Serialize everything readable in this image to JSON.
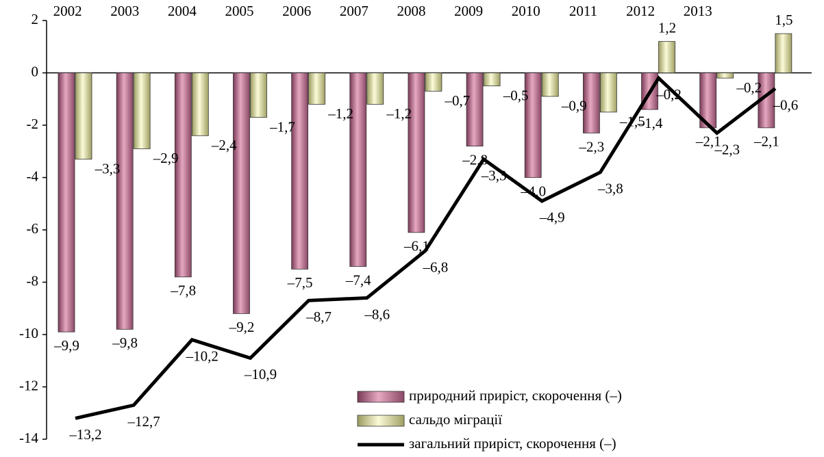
{
  "chart_data": {
    "type": "bar_line",
    "categories": [
      "2002",
      "2003",
      "2004",
      "2005",
      "2006",
      "2007",
      "2008",
      "2009",
      "2010",
      "2011",
      "2012",
      "2013",
      null
    ],
    "series": [
      {
        "name": "природний приріст, скорочення (–)",
        "type": "bar",
        "color": "#c47a98",
        "values": [
          -9.9,
          -9.8,
          -7.8,
          -9.2,
          -7.5,
          -7.4,
          -6.1,
          -2.8,
          -4.0,
          -2.3,
          -1.4,
          -2.1,
          -2.1
        ],
        "value_labels": [
          "–9,9",
          "–9,8",
          "–7,8",
          "–9,2",
          "–7,5",
          "–7,4",
          "–6,1",
          "–2,8",
          "–4,0",
          "–2,3",
          "–1,4",
          "–2,1",
          "–2,1"
        ]
      },
      {
        "name": "сальдо міграції",
        "type": "bar",
        "color": "#eeeeb0",
        "values": [
          -3.3,
          -2.9,
          -2.4,
          -1.7,
          -1.2,
          -1.2,
          -0.7,
          -0.5,
          -0.9,
          -1.5,
          1.2,
          -0.2,
          1.5
        ],
        "value_labels": [
          "–3,3",
          "–2,9",
          "–2,4",
          "–1,7",
          "–1,2",
          "–1,2",
          "–0,7",
          "–0,5",
          "–0,9",
          "–1,5",
          "1,2",
          "–0,2",
          "1,5"
        ]
      },
      {
        "name": "загальний приріст, скорочення (–)",
        "type": "line",
        "color": "#000000",
        "values": [
          -13.2,
          -12.7,
          -10.2,
          -10.9,
          -8.7,
          -8.6,
          -6.8,
          -3.3,
          -4.9,
          -3.8,
          -0.2,
          -2.3,
          -0.6
        ],
        "value_labels": [
          "–13,2",
          "–12,7",
          "–10,2",
          "–10,9",
          "–8,7",
          "–8,6",
          "–6,8",
          "–3,3",
          "–4,9",
          "–3,8",
          "–0,2",
          "–2,3",
          "–0,6"
        ]
      }
    ],
    "ylim": [
      -14,
      2
    ],
    "yticks": [
      -14,
      -12,
      -10,
      -8,
      -6,
      -4,
      -2,
      0,
      2
    ],
    "legend": "lower right"
  }
}
